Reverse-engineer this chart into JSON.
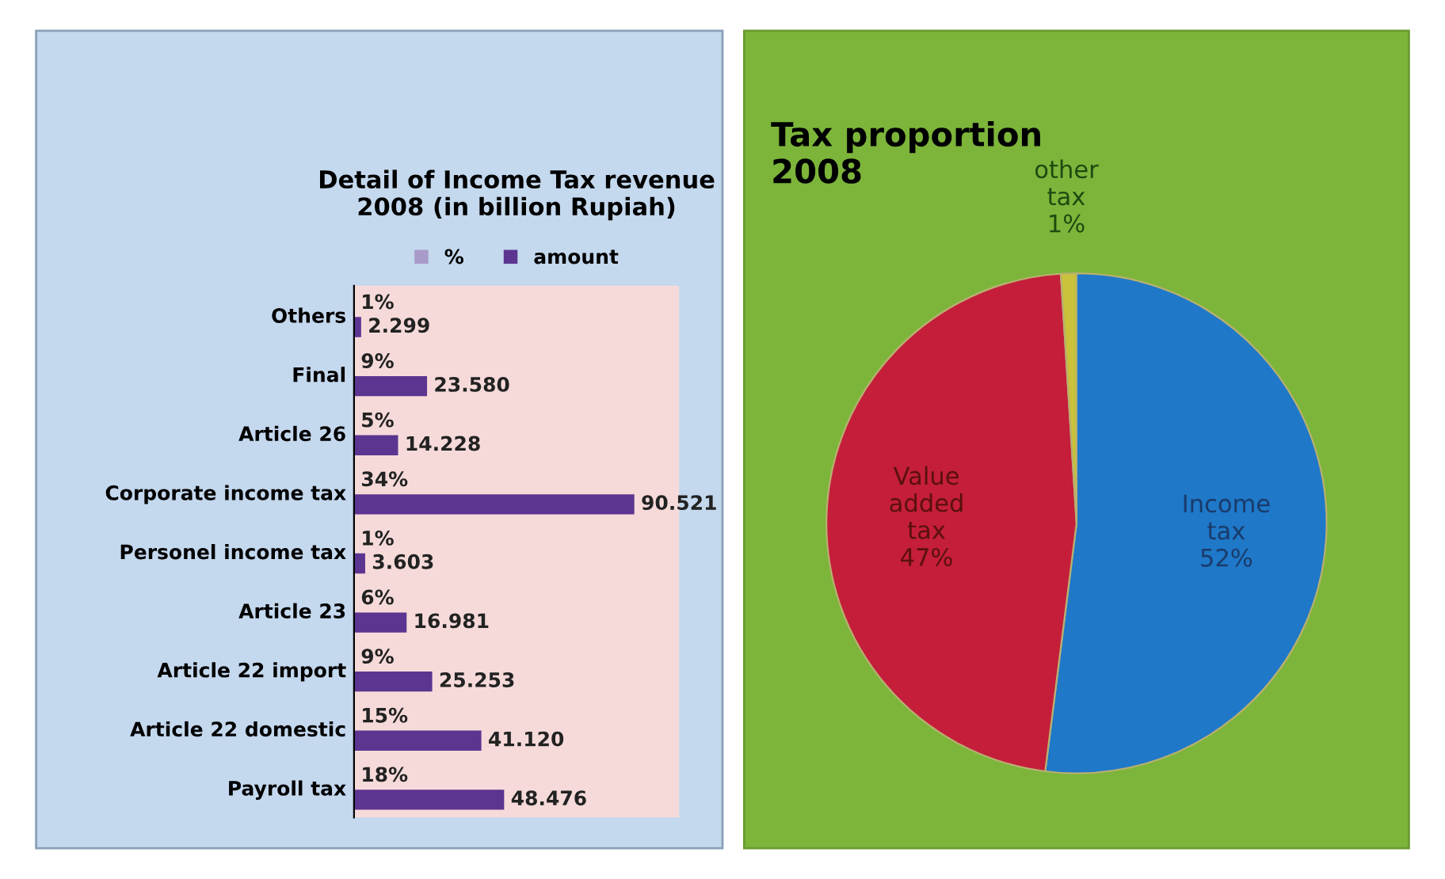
{
  "chart_data": [
    {
      "type": "bar",
      "orientation": "horizontal",
      "title": "Detail of Income Tax revenue\n2008 (in billion Rupiah)",
      "categories": [
        "Others",
        "Final",
        "Article 26",
        "Corporate income tax",
        "Personel income tax",
        "Article 23",
        "Article 22 import",
        "Article 22 domestic",
        "Payroll tax"
      ],
      "series": [
        {
          "name": "%",
          "color": "#a99bc9",
          "values": [
            1,
            9,
            5,
            34,
            1,
            6,
            9,
            15,
            18
          ],
          "value_labels": [
            "1%",
            "9%",
            "5%",
            "34%",
            "1%",
            "6%",
            "9%",
            "15%",
            "18%"
          ]
        },
        {
          "name": "amount",
          "color": "#5b3590",
          "values": [
            2299,
            23580,
            14228,
            90521,
            3603,
            16981,
            25253,
            41120,
            48476
          ],
          "value_labels": [
            "2.299",
            "23.580",
            "14.228",
            "90.521",
            "3.603",
            "16.981",
            "25.253",
            "41.120",
            "48.476"
          ]
        }
      ],
      "xlim": [
        0,
        105000
      ],
      "legend": "top",
      "tick_labels": "y",
      "grid": false
    },
    {
      "type": "pie",
      "title": "Tax proportion\n2008",
      "categories": [
        "Income tax",
        "Value added tax",
        "other tax"
      ],
      "values": [
        52,
        47,
        1
      ],
      "value_labels": [
        "52%",
        "47%",
        "1%"
      ],
      "colors": [
        "#1f78c8",
        "#c41e3a",
        "#c9c23a"
      ]
    }
  ]
}
